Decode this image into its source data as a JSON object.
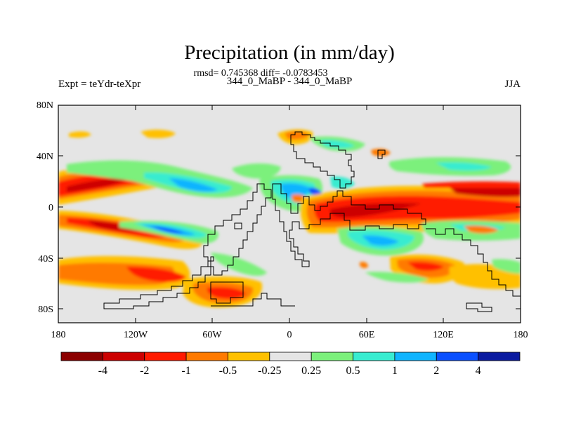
{
  "title": "Precipitation (in mm/day)",
  "stats_line": "rmsd= 0.745368 diff= -0.0783453",
  "subtitle_left": "Expt = teYdr-teXpr",
  "subtitle_center": "344_0_MaBP - 344_0_MaBP",
  "subtitle_right": "JJA",
  "axes": {
    "lat_labels": [
      "80N",
      "40N",
      "0",
      "40S",
      "80S"
    ],
    "lon_labels": [
      "180",
      "120W",
      "60W",
      "0",
      "60E",
      "120E",
      "180"
    ]
  },
  "colorbar": {
    "colors": [
      "#8b0000",
      "#cc0000",
      "#ff1a00",
      "#ff7a00",
      "#ffc000",
      "#e5e5e5",
      "#7cf07c",
      "#38ecd0",
      "#10b4ff",
      "#0a50ff",
      "#0a1aa0"
    ],
    "labels": [
      "-4",
      "-2",
      "-1",
      "-0.5",
      "-0.25",
      "0.25",
      "0.5",
      "1",
      "2",
      "4"
    ]
  },
  "colors": {
    "background": "#e5e5e5",
    "frame": "#000000",
    "coast": "#000000"
  }
}
